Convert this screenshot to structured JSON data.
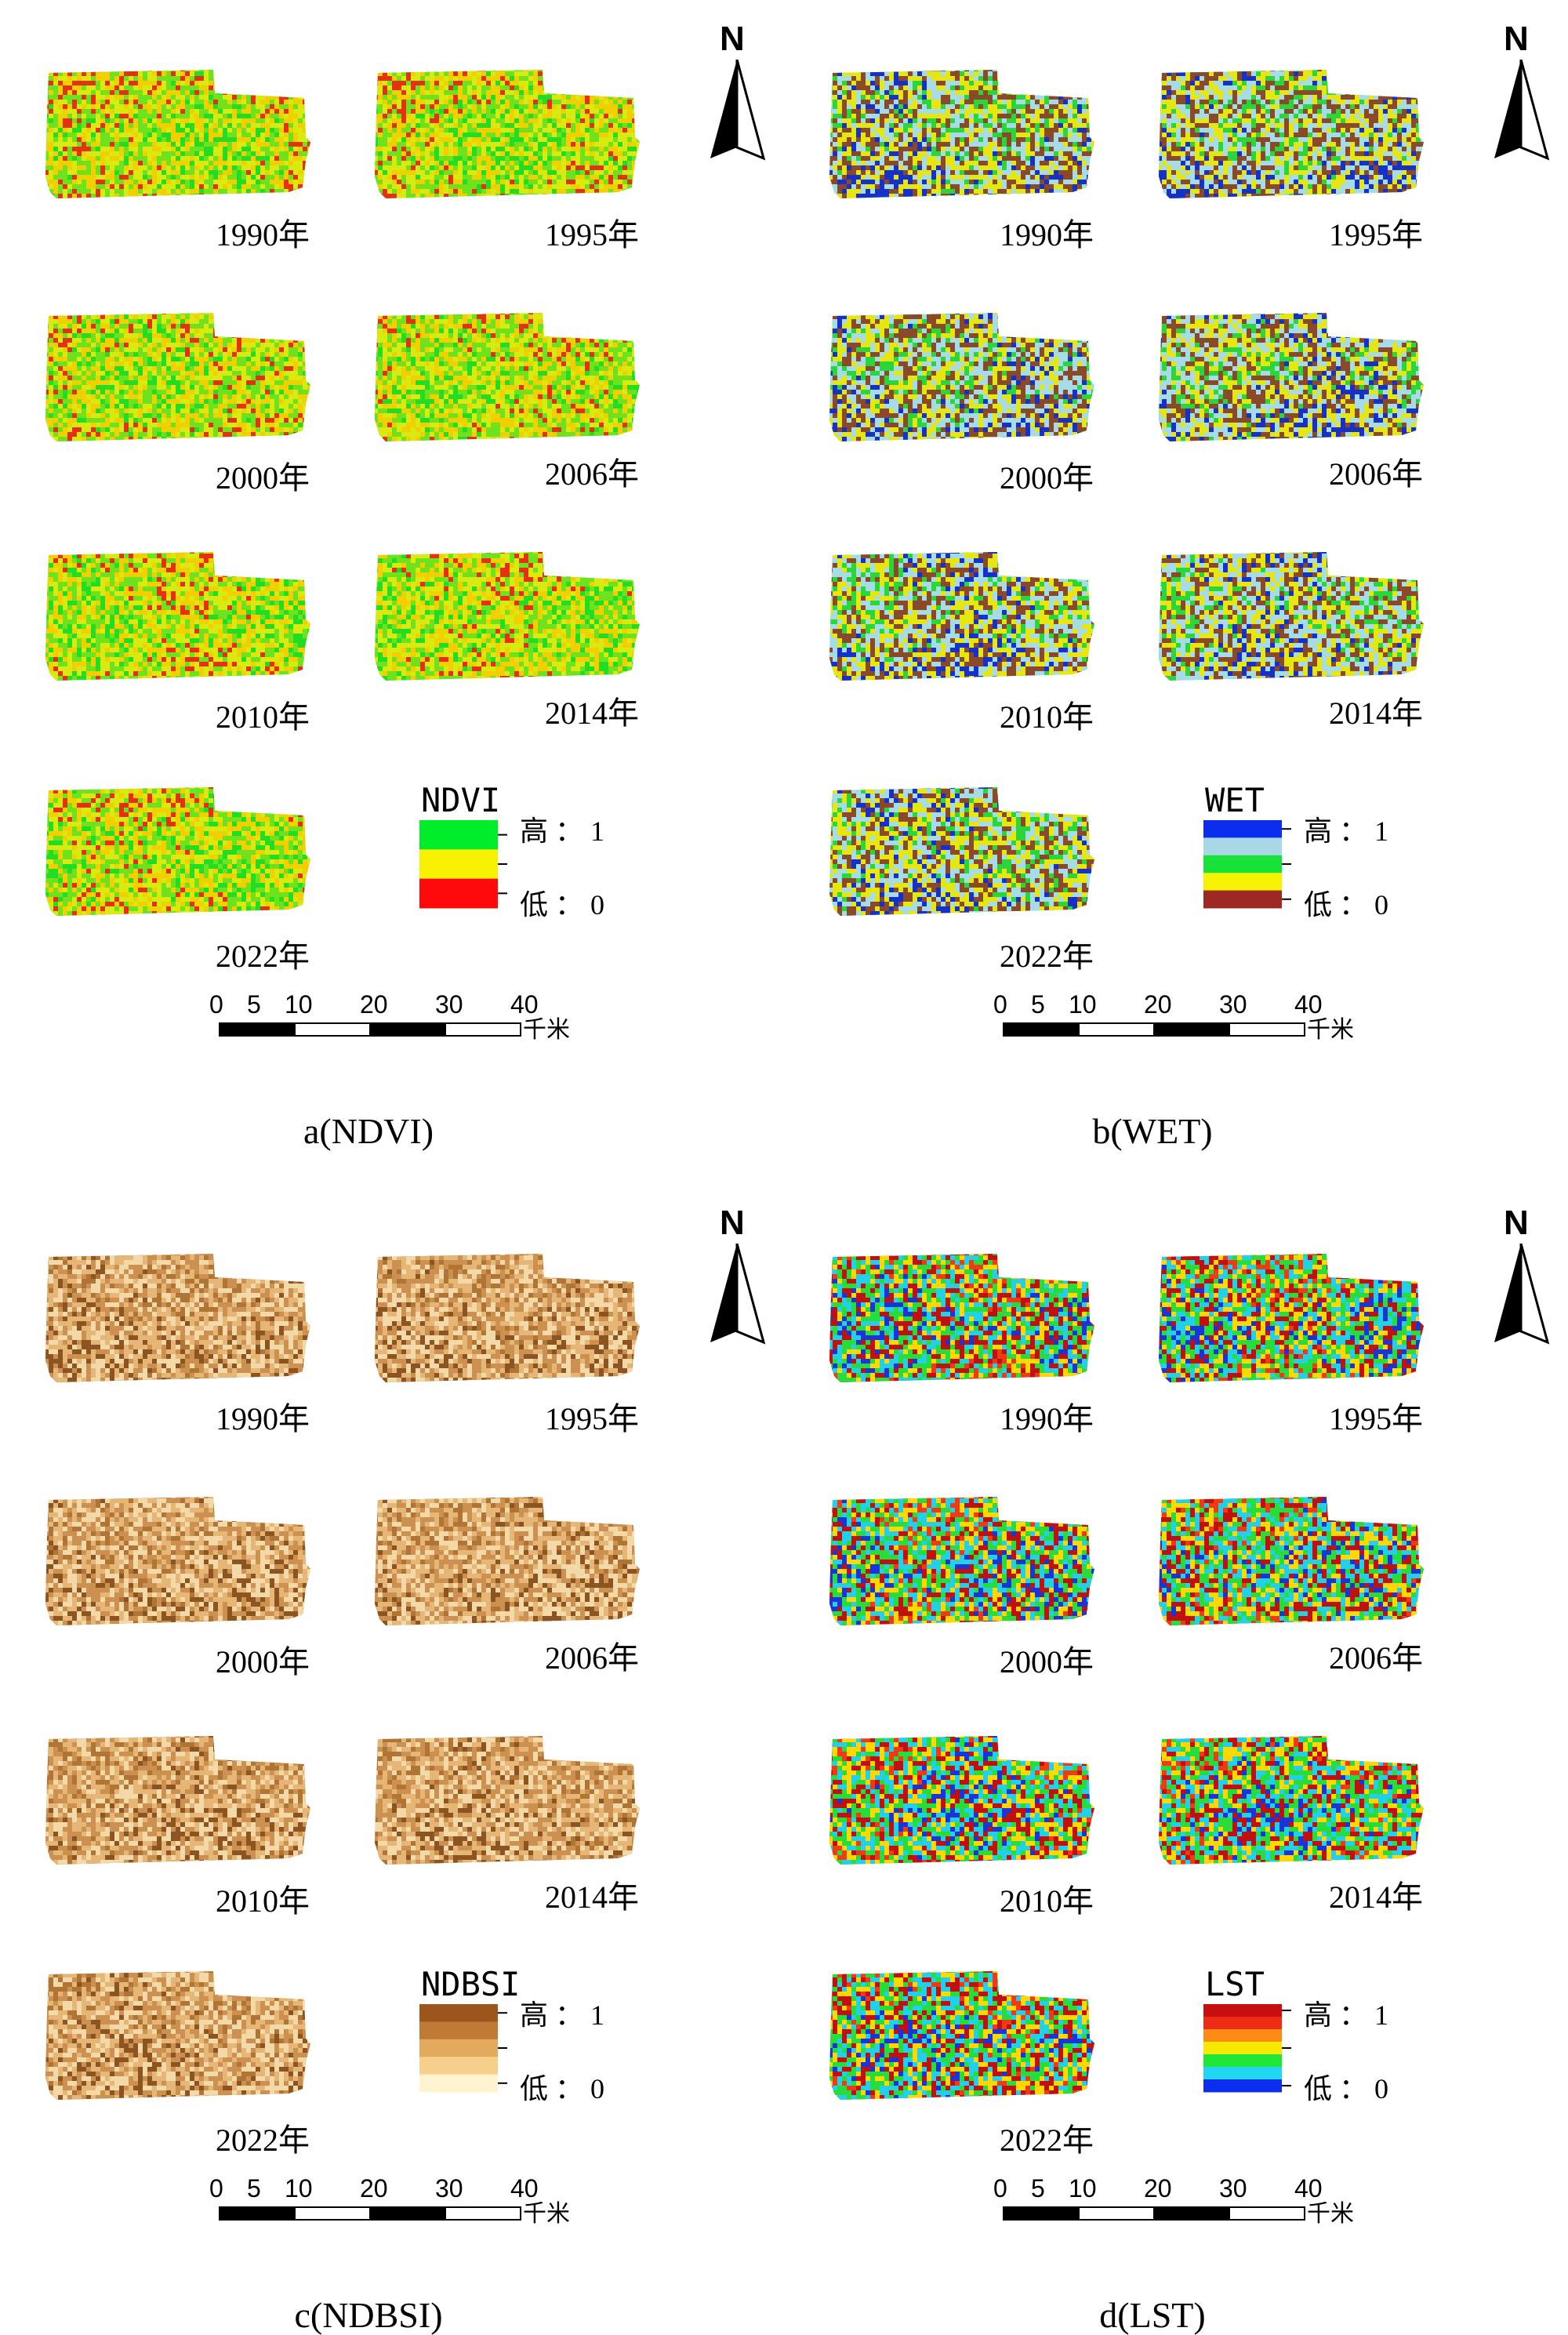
{
  "panels": [
    {
      "id": "ndvi",
      "caption": "a(NDVI)",
      "years": [
        "1990年",
        "1995年",
        "2000年",
        "2006年",
        "2010年",
        "2014年",
        "2022年"
      ],
      "legend": {
        "title": "NDVI",
        "high": "高 ： 1",
        "low": "低 ： 0",
        "colors": [
          "#00ee2a",
          "#f6f200",
          "#ff0a0a"
        ]
      },
      "map_palette": [
        "#22dd22",
        "#6ee21c",
        "#d8ea10",
        "#f2d000",
        "#e43210"
      ],
      "north": "N",
      "scalebar": {
        "ticks": [
          "0",
          "5",
          "10",
          "20",
          "30",
          "40"
        ],
        "unit": "千米"
      }
    },
    {
      "id": "wet",
      "caption": "b(WET)",
      "years": [
        "1990年",
        "1995年",
        "2000年",
        "2006年",
        "2010年",
        "2014年",
        "2022年"
      ],
      "legend": {
        "title": "WET",
        "high": "高 ： 1",
        "low": "低 ： 0",
        "colors": [
          "#0a2dee",
          "#a9d7e6",
          "#16e23a",
          "#f6f200",
          "#9c2a22"
        ]
      },
      "map_palette": [
        "#2bd63a",
        "#a6dce8",
        "#e6e610",
        "#8a4a2a",
        "#1630c8"
      ],
      "north": "N",
      "scalebar": {
        "ticks": [
          "0",
          "5",
          "10",
          "20",
          "30",
          "40"
        ],
        "unit": "千米"
      }
    },
    {
      "id": "ndbsi",
      "caption": "c(NDBSI)",
      "years": [
        "1990年",
        "1995年",
        "2000年",
        "2006年",
        "2010年",
        "2014年",
        "2022年"
      ],
      "legend": {
        "title": "NDBSI",
        "high": "高 ： 1",
        "low": "低 ： 0",
        "colors": [
          "#9c561c",
          "#c07a36",
          "#e3a95c",
          "#f6cf8a",
          "#fff4cf"
        ]
      },
      "map_palette": [
        "#b07434",
        "#cc9150",
        "#e6b676",
        "#f4d9a8",
        "#8c5420"
      ],
      "north": "N",
      "scalebar": {
        "ticks": [
          "0",
          "5",
          "10",
          "20",
          "30",
          "40"
        ],
        "unit": "千米"
      }
    },
    {
      "id": "lst",
      "caption": "d(LST)",
      "years": [
        "1990年",
        "1995年",
        "2000年",
        "2006年",
        "2010年",
        "2014年",
        "2022年"
      ],
      "legend": {
        "title": "LST",
        "high": "高 ： 1",
        "low": "低 ： 0",
        "colors": [
          "#c80e0e",
          "#f02a14",
          "#ff8a14",
          "#f6e800",
          "#20e63a",
          "#20d6f0",
          "#0a2dee"
        ]
      },
      "map_palette": [
        "#f03a14",
        "#ffd800",
        "#28dc3c",
        "#22d0e8",
        "#c01010",
        "#1a34d8"
      ],
      "north": "N",
      "scalebar": {
        "ticks": [
          "0",
          "5",
          "10",
          "20",
          "30",
          "40"
        ],
        "unit": "千米"
      }
    }
  ]
}
